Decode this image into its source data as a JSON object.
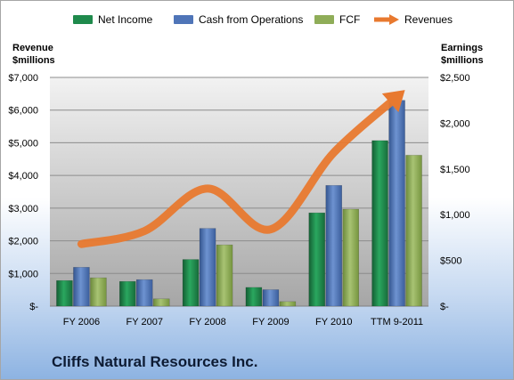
{
  "chart_data": {
    "type": "bar",
    "categories": [
      "FY 2006",
      "FY 2007",
      "FY 2008",
      "FY 2009",
      "FY 2010",
      "TTM 9-2011"
    ],
    "series": [
      {
        "name": "Net Income",
        "axis": "right",
        "type": "bar",
        "color": "#1f8a4c",
        "values": [
          280,
          270,
          510,
          205,
          1020,
          1810
        ]
      },
      {
        "name": "Cash from Operations",
        "axis": "right",
        "type": "bar",
        "color": "#4f75b8",
        "values": [
          425,
          290,
          850,
          180,
          1320,
          2250
        ]
      },
      {
        "name": "FCF",
        "axis": "right",
        "type": "bar",
        "color": "#8fad58",
        "values": [
          310,
          80,
          670,
          50,
          1060,
          1650
        ]
      },
      {
        "name": "Revenues",
        "axis": "left",
        "type": "line",
        "color": "#e8792f",
        "values": [
          1900,
          2300,
          3600,
          2350,
          4700,
          6400
        ]
      }
    ],
    "left_axis": {
      "title_line1": "Revenue",
      "title_line2": "$millions",
      "ylim": [
        0,
        7000
      ],
      "ticks": [
        "$-",
        "$1,000",
        "$2,000",
        "$3,000",
        "$4,000",
        "$5,000",
        "$6,000",
        "$7,000"
      ]
    },
    "right_axis": {
      "title_line1": "Earnings",
      "title_line2": "$millions",
      "ylim": [
        0,
        2500
      ],
      "ticks": [
        "$-",
        "$500",
        "$1,000",
        "$1,500",
        "$2,000",
        "$2,500"
      ]
    },
    "grid": true,
    "legend_position": "top"
  },
  "company_name": "Cliffs Natural Resources Inc."
}
